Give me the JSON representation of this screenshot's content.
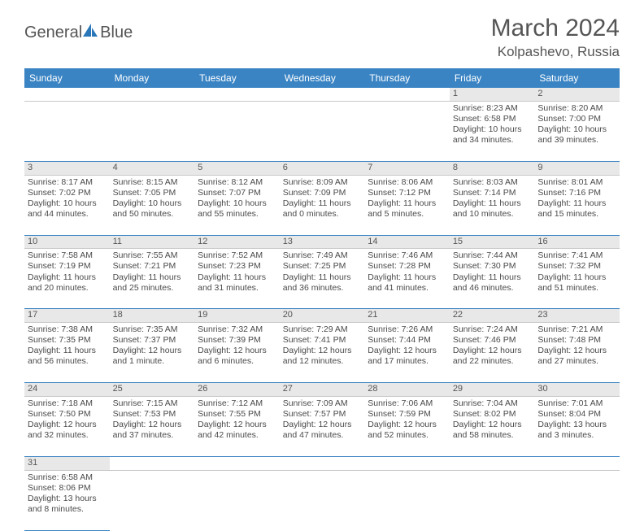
{
  "logo": {
    "text_general": "General",
    "text_blue": "Blue"
  },
  "title": {
    "month_year": "March 2024",
    "location": "Kolpashevo, Russia"
  },
  "colors": {
    "header_bg": "#3a84c4",
    "header_text": "#ffffff",
    "daynum_bg": "#e8e8e8",
    "row_border": "#3a84c4",
    "text": "#4a4a4a",
    "logo_blue": "#2976b8"
  },
  "day_headers": [
    "Sunday",
    "Monday",
    "Tuesday",
    "Wednesday",
    "Thursday",
    "Friday",
    "Saturday"
  ],
  "weeks": [
    [
      null,
      null,
      null,
      null,
      null,
      {
        "n": "1",
        "sr": "Sunrise: 8:23 AM",
        "ss": "Sunset: 6:58 PM",
        "d1": "Daylight: 10 hours",
        "d2": "and 34 minutes."
      },
      {
        "n": "2",
        "sr": "Sunrise: 8:20 AM",
        "ss": "Sunset: 7:00 PM",
        "d1": "Daylight: 10 hours",
        "d2": "and 39 minutes."
      }
    ],
    [
      {
        "n": "3",
        "sr": "Sunrise: 8:17 AM",
        "ss": "Sunset: 7:02 PM",
        "d1": "Daylight: 10 hours",
        "d2": "and 44 minutes."
      },
      {
        "n": "4",
        "sr": "Sunrise: 8:15 AM",
        "ss": "Sunset: 7:05 PM",
        "d1": "Daylight: 10 hours",
        "d2": "and 50 minutes."
      },
      {
        "n": "5",
        "sr": "Sunrise: 8:12 AM",
        "ss": "Sunset: 7:07 PM",
        "d1": "Daylight: 10 hours",
        "d2": "and 55 minutes."
      },
      {
        "n": "6",
        "sr": "Sunrise: 8:09 AM",
        "ss": "Sunset: 7:09 PM",
        "d1": "Daylight: 11 hours",
        "d2": "and 0 minutes."
      },
      {
        "n": "7",
        "sr": "Sunrise: 8:06 AM",
        "ss": "Sunset: 7:12 PM",
        "d1": "Daylight: 11 hours",
        "d2": "and 5 minutes."
      },
      {
        "n": "8",
        "sr": "Sunrise: 8:03 AM",
        "ss": "Sunset: 7:14 PM",
        "d1": "Daylight: 11 hours",
        "d2": "and 10 minutes."
      },
      {
        "n": "9",
        "sr": "Sunrise: 8:01 AM",
        "ss": "Sunset: 7:16 PM",
        "d1": "Daylight: 11 hours",
        "d2": "and 15 minutes."
      }
    ],
    [
      {
        "n": "10",
        "sr": "Sunrise: 7:58 AM",
        "ss": "Sunset: 7:19 PM",
        "d1": "Daylight: 11 hours",
        "d2": "and 20 minutes."
      },
      {
        "n": "11",
        "sr": "Sunrise: 7:55 AM",
        "ss": "Sunset: 7:21 PM",
        "d1": "Daylight: 11 hours",
        "d2": "and 25 minutes."
      },
      {
        "n": "12",
        "sr": "Sunrise: 7:52 AM",
        "ss": "Sunset: 7:23 PM",
        "d1": "Daylight: 11 hours",
        "d2": "and 31 minutes."
      },
      {
        "n": "13",
        "sr": "Sunrise: 7:49 AM",
        "ss": "Sunset: 7:25 PM",
        "d1": "Daylight: 11 hours",
        "d2": "and 36 minutes."
      },
      {
        "n": "14",
        "sr": "Sunrise: 7:46 AM",
        "ss": "Sunset: 7:28 PM",
        "d1": "Daylight: 11 hours",
        "d2": "and 41 minutes."
      },
      {
        "n": "15",
        "sr": "Sunrise: 7:44 AM",
        "ss": "Sunset: 7:30 PM",
        "d1": "Daylight: 11 hours",
        "d2": "and 46 minutes."
      },
      {
        "n": "16",
        "sr": "Sunrise: 7:41 AM",
        "ss": "Sunset: 7:32 PM",
        "d1": "Daylight: 11 hours",
        "d2": "and 51 minutes."
      }
    ],
    [
      {
        "n": "17",
        "sr": "Sunrise: 7:38 AM",
        "ss": "Sunset: 7:35 PM",
        "d1": "Daylight: 11 hours",
        "d2": "and 56 minutes."
      },
      {
        "n": "18",
        "sr": "Sunrise: 7:35 AM",
        "ss": "Sunset: 7:37 PM",
        "d1": "Daylight: 12 hours",
        "d2": "and 1 minute."
      },
      {
        "n": "19",
        "sr": "Sunrise: 7:32 AM",
        "ss": "Sunset: 7:39 PM",
        "d1": "Daylight: 12 hours",
        "d2": "and 6 minutes."
      },
      {
        "n": "20",
        "sr": "Sunrise: 7:29 AM",
        "ss": "Sunset: 7:41 PM",
        "d1": "Daylight: 12 hours",
        "d2": "and 12 minutes."
      },
      {
        "n": "21",
        "sr": "Sunrise: 7:26 AM",
        "ss": "Sunset: 7:44 PM",
        "d1": "Daylight: 12 hours",
        "d2": "and 17 minutes."
      },
      {
        "n": "22",
        "sr": "Sunrise: 7:24 AM",
        "ss": "Sunset: 7:46 PM",
        "d1": "Daylight: 12 hours",
        "d2": "and 22 minutes."
      },
      {
        "n": "23",
        "sr": "Sunrise: 7:21 AM",
        "ss": "Sunset: 7:48 PM",
        "d1": "Daylight: 12 hours",
        "d2": "and 27 minutes."
      }
    ],
    [
      {
        "n": "24",
        "sr": "Sunrise: 7:18 AM",
        "ss": "Sunset: 7:50 PM",
        "d1": "Daylight: 12 hours",
        "d2": "and 32 minutes."
      },
      {
        "n": "25",
        "sr": "Sunrise: 7:15 AM",
        "ss": "Sunset: 7:53 PM",
        "d1": "Daylight: 12 hours",
        "d2": "and 37 minutes."
      },
      {
        "n": "26",
        "sr": "Sunrise: 7:12 AM",
        "ss": "Sunset: 7:55 PM",
        "d1": "Daylight: 12 hours",
        "d2": "and 42 minutes."
      },
      {
        "n": "27",
        "sr": "Sunrise: 7:09 AM",
        "ss": "Sunset: 7:57 PM",
        "d1": "Daylight: 12 hours",
        "d2": "and 47 minutes."
      },
      {
        "n": "28",
        "sr": "Sunrise: 7:06 AM",
        "ss": "Sunset: 7:59 PM",
        "d1": "Daylight: 12 hours",
        "d2": "and 52 minutes."
      },
      {
        "n": "29",
        "sr": "Sunrise: 7:04 AM",
        "ss": "Sunset: 8:02 PM",
        "d1": "Daylight: 12 hours",
        "d2": "and 58 minutes."
      },
      {
        "n": "30",
        "sr": "Sunrise: 7:01 AM",
        "ss": "Sunset: 8:04 PM",
        "d1": "Daylight: 13 hours",
        "d2": "and 3 minutes."
      }
    ],
    [
      {
        "n": "31",
        "sr": "Sunrise: 6:58 AM",
        "ss": "Sunset: 8:06 PM",
        "d1": "Daylight: 13 hours",
        "d2": "and 8 minutes."
      },
      null,
      null,
      null,
      null,
      null,
      null
    ]
  ]
}
